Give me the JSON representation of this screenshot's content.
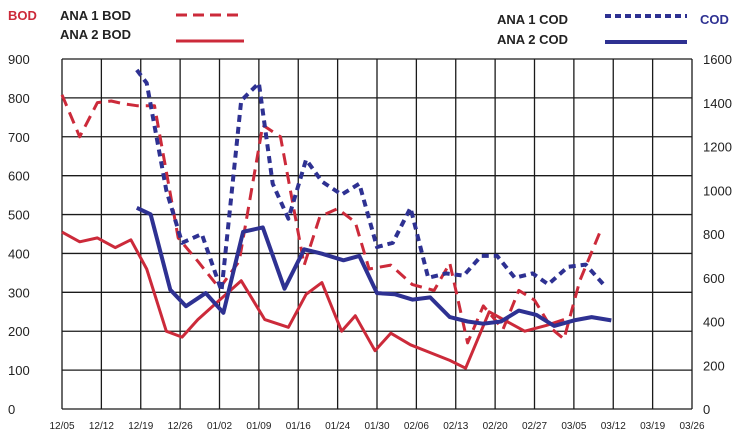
{
  "chart_data": {
    "type": "line",
    "left_axis": {
      "label": "BOD",
      "ticks": [
        0,
        100,
        200,
        300,
        400,
        500,
        600,
        700,
        800,
        900
      ],
      "range": [
        0,
        900
      ]
    },
    "right_axis": {
      "label": "COD",
      "ticks": [
        0,
        200,
        400,
        600,
        800,
        1000,
        1200,
        1400,
        1600
      ],
      "range": [
        0,
        1600
      ]
    },
    "x_ticks": [
      "12/05",
      "12/12",
      "12/19",
      "12/26",
      "01/02",
      "01/09",
      "01/16",
      "01/24",
      "01/30",
      "02/06",
      "02/13",
      "02/20",
      "02/27",
      "03/05",
      "03/12",
      "03/19",
      "03/26"
    ],
    "series": [
      {
        "name": "ANA 1 BOD",
        "axis": "left",
        "style": "dashed",
        "color": "#cc2a3a",
        "points": [
          [
            0,
            808
          ],
          [
            0.45,
            700
          ],
          [
            0.9,
            788
          ],
          [
            1.25,
            792
          ],
          [
            1.55,
            785
          ],
          [
            1.9,
            780
          ],
          [
            2.35,
            780
          ],
          [
            2.95,
            440
          ],
          [
            3.45,
            380
          ],
          [
            4.0,
            310
          ],
          [
            4.5,
            380
          ],
          [
            5.1,
            730
          ],
          [
            5.55,
            700
          ],
          [
            6.15,
            370
          ],
          [
            6.55,
            495
          ],
          [
            7.0,
            515
          ],
          [
            7.45,
            480
          ],
          [
            7.8,
            360
          ],
          [
            8.35,
            370
          ],
          [
            8.9,
            320
          ],
          [
            9.45,
            305
          ],
          [
            9.85,
            375
          ],
          [
            10.3,
            170
          ],
          [
            10.7,
            265
          ],
          [
            11.2,
            205
          ],
          [
            11.6,
            305
          ],
          [
            12.0,
            280
          ],
          [
            12.45,
            205
          ],
          [
            12.75,
            180
          ],
          [
            13.15,
            330
          ],
          [
            13.65,
            452
          ]
        ]
      },
      {
        "name": "ANA 2 BOD",
        "axis": "left",
        "style": "solid",
        "color": "#cc2a3a",
        "points": [
          [
            0,
            455
          ],
          [
            0.45,
            430
          ],
          [
            0.9,
            440
          ],
          [
            1.35,
            415
          ],
          [
            1.75,
            435
          ],
          [
            2.15,
            360
          ],
          [
            2.65,
            200
          ],
          [
            3.05,
            185
          ],
          [
            3.45,
            230
          ],
          [
            4.0,
            280
          ],
          [
            4.55,
            330
          ],
          [
            5.15,
            230
          ],
          [
            5.75,
            210
          ],
          [
            6.2,
            295
          ],
          [
            6.6,
            325
          ],
          [
            7.1,
            200
          ],
          [
            7.45,
            240
          ],
          [
            7.95,
            150
          ],
          [
            8.35,
            195
          ],
          [
            8.85,
            165
          ],
          [
            9.35,
            145
          ],
          [
            9.85,
            125
          ],
          [
            10.25,
            105
          ],
          [
            10.85,
            250
          ],
          [
            11.3,
            225
          ],
          [
            11.75,
            200
          ],
          [
            12.3,
            215
          ],
          [
            12.75,
            230
          ]
        ]
      },
      {
        "name": "ANA 1 COD",
        "axis": "right",
        "style": "dashed",
        "color": "#2e3192",
        "points": [
          [
            1.9,
            1550
          ],
          [
            2.15,
            1490
          ],
          [
            2.65,
            1000
          ],
          [
            3.05,
            760
          ],
          [
            3.55,
            800
          ],
          [
            4.05,
            540
          ],
          [
            4.55,
            1410
          ],
          [
            5.0,
            1490
          ],
          [
            5.35,
            1030
          ],
          [
            5.75,
            870
          ],
          [
            6.2,
            1140
          ],
          [
            6.6,
            1040
          ],
          [
            7.1,
            980
          ],
          [
            7.55,
            1030
          ],
          [
            8.0,
            740
          ],
          [
            8.4,
            760
          ],
          [
            8.85,
            920
          ],
          [
            9.3,
            600
          ],
          [
            9.75,
            620
          ],
          [
            10.2,
            610
          ],
          [
            10.65,
            700
          ],
          [
            11.05,
            700
          ],
          [
            11.5,
            600
          ],
          [
            11.95,
            620
          ],
          [
            12.35,
            570
          ],
          [
            12.85,
            650
          ],
          [
            13.3,
            660
          ],
          [
            13.75,
            570
          ]
        ]
      },
      {
        "name": "ANA 2 COD",
        "axis": "right",
        "style": "solid",
        "color": "#2e3192",
        "points": [
          [
            1.9,
            920
          ],
          [
            2.25,
            890
          ],
          [
            2.75,
            545
          ],
          [
            3.15,
            470
          ],
          [
            3.65,
            530
          ],
          [
            4.1,
            440
          ],
          [
            4.6,
            810
          ],
          [
            5.1,
            830
          ],
          [
            5.65,
            550
          ],
          [
            6.15,
            730
          ],
          [
            6.6,
            710
          ],
          [
            7.15,
            680
          ],
          [
            7.55,
            700
          ],
          [
            8.0,
            530
          ],
          [
            8.45,
            525
          ],
          [
            8.9,
            500
          ],
          [
            9.35,
            510
          ],
          [
            9.85,
            420
          ],
          [
            10.3,
            400
          ],
          [
            10.7,
            390
          ],
          [
            11.15,
            400
          ],
          [
            11.6,
            450
          ],
          [
            12.05,
            430
          ],
          [
            12.5,
            380
          ],
          [
            13.0,
            405
          ],
          [
            13.45,
            420
          ],
          [
            13.95,
            405
          ]
        ]
      }
    ]
  }
}
